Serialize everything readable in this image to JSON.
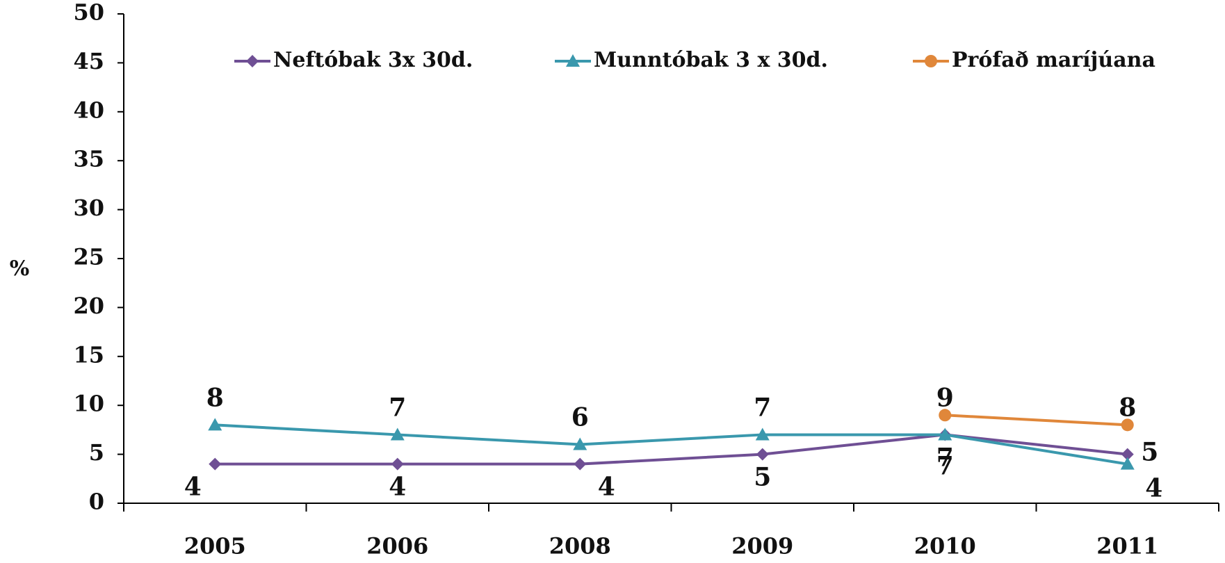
{
  "chart_data": {
    "type": "line",
    "ylabel": "%",
    "categories": [
      "2005",
      "2006",
      "2008",
      "2009",
      "2010",
      "2011"
    ],
    "series": [
      {
        "name": "Neftóbak 3x 30d.",
        "color": "#6f4f94",
        "marker": "diamond",
        "values": [
          4,
          4,
          4,
          5,
          7,
          5
        ]
      },
      {
        "name": "Munntóbak 3 x 30d.",
        "color": "#3a98ad",
        "marker": "triangle",
        "values": [
          8,
          7,
          6,
          7,
          7,
          4
        ]
      },
      {
        "name": "Prófað maríjúana",
        "color": "#e0873a",
        "marker": "circle",
        "values": [
          null,
          null,
          null,
          null,
          9,
          8
        ]
      }
    ],
    "ylim": [
      0,
      50
    ],
    "yticks": [
      0,
      5,
      10,
      15,
      20,
      25,
      30,
      35,
      40,
      45,
      50
    ],
    "grid": false,
    "legend": "top"
  }
}
